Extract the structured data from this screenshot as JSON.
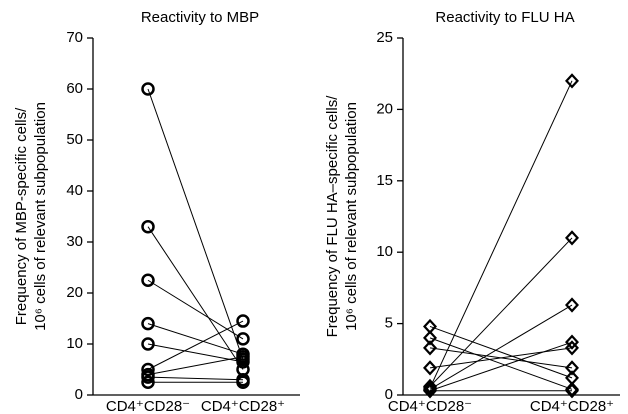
{
  "chart_data": [
    {
      "type": "paired",
      "title": "Reactivity to MBP",
      "ylabel": [
        "Frequency of MBP-specific cells/",
        "10⁶ cells of relevant subpopulation"
      ],
      "categories": [
        "CD4⁺CD28⁻",
        "CD4⁺CD28⁺"
      ],
      "marker": "circle",
      "color": "#000000",
      "ylim": [
        0,
        70
      ],
      "yticks": [
        0,
        10,
        20,
        30,
        40,
        50,
        60,
        70
      ],
      "series": [
        {
          "values": [
            60,
            7
          ]
        },
        {
          "values": [
            33,
            5
          ]
        },
        {
          "values": [
            22.5,
            11
          ]
        },
        {
          "values": [
            14,
            8
          ]
        },
        {
          "values": [
            10,
            6.5
          ]
        },
        {
          "values": [
            5,
            14.5
          ]
        },
        {
          "values": [
            4,
            7.5
          ]
        },
        {
          "values": [
            3.5,
            3
          ]
        },
        {
          "values": [
            2.5,
            2.5
          ]
        }
      ]
    },
    {
      "type": "paired",
      "title": "Reactivity to FLU HA",
      "ylabel": [
        "Frequency of FLU HA–specific cells/",
        "10⁶ cells of relevant subpopulation"
      ],
      "categories": [
        "CD4⁺CD28⁻",
        "CD4⁺CD28⁺"
      ],
      "marker": "diamond",
      "color": "#000000",
      "ylim": [
        0,
        25
      ],
      "yticks": [
        0,
        5,
        10,
        15,
        20,
        25
      ],
      "series": [
        {
          "values": [
            0.5,
            22
          ]
        },
        {
          "values": [
            0.6,
            11
          ]
        },
        {
          "values": [
            4.8,
            1.2
          ]
        },
        {
          "values": [
            4.0,
            0.4
          ]
        },
        {
          "values": [
            0.4,
            6.3
          ]
        },
        {
          "values": [
            0.3,
            3.7
          ]
        },
        {
          "values": [
            1.9,
            3.3
          ]
        },
        {
          "values": [
            3.3,
            1.9
          ]
        },
        {
          "values": [
            0.3,
            0.3
          ]
        }
      ]
    }
  ]
}
